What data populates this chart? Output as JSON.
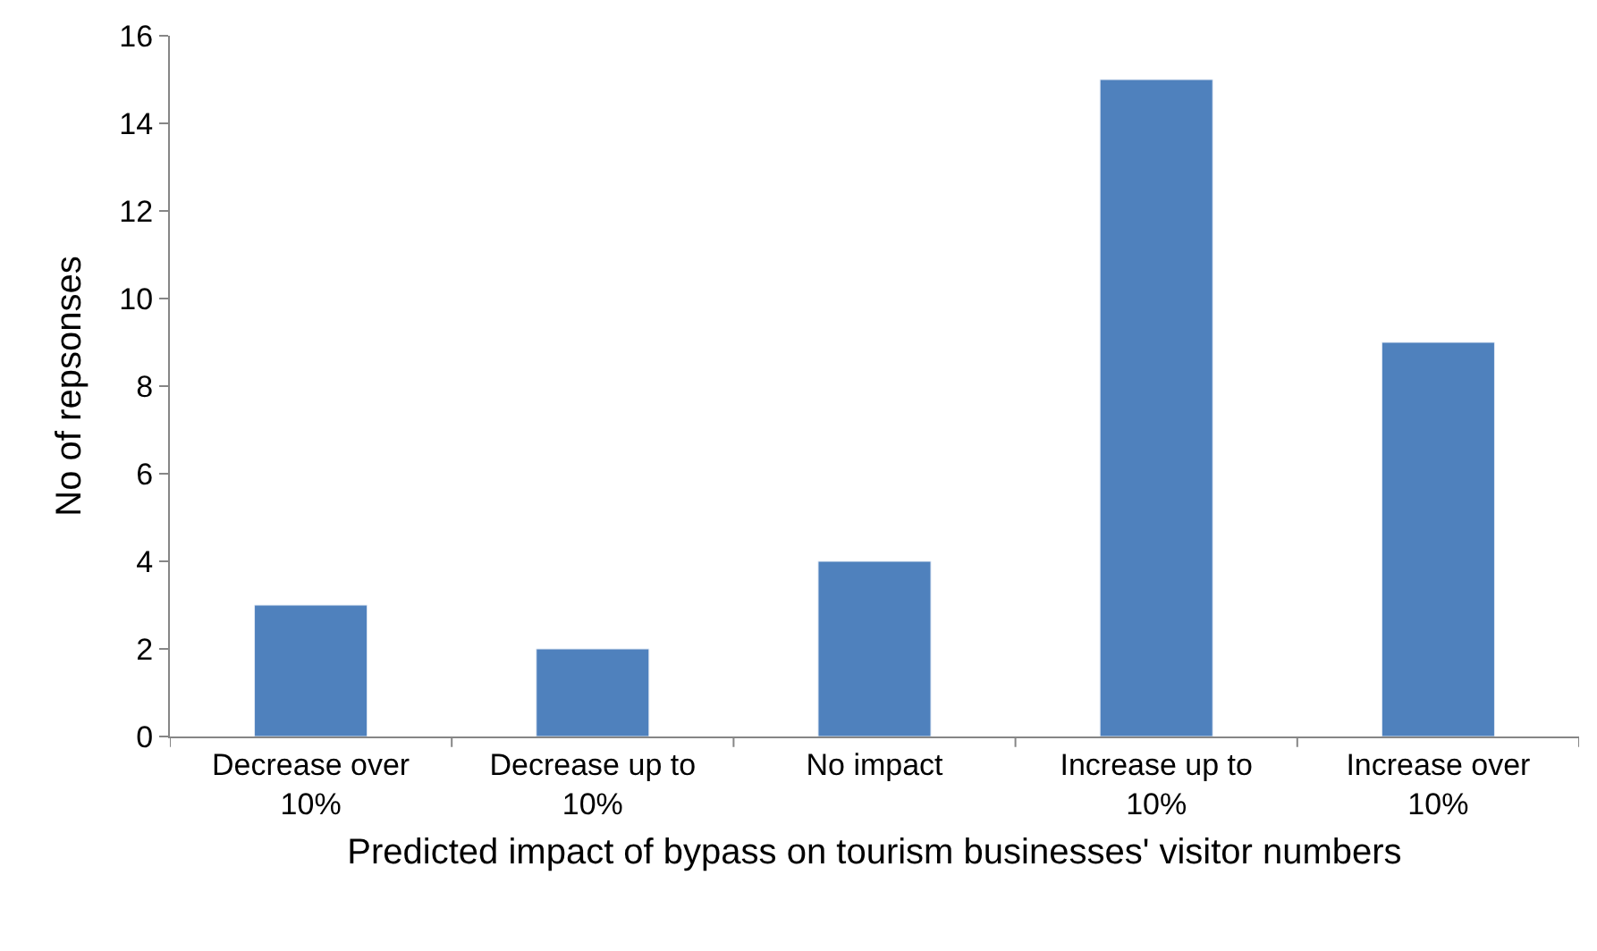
{
  "chart_data": {
    "type": "bar",
    "xlabel": "Predicted impact of bypass on tourism businesses' visitor numbers",
    "ylabel": "No of repsonses",
    "categories": [
      "Decrease over 10%",
      "Decrease up to 10%",
      "No impact",
      "Increase up to 10%",
      "Increase over 10%"
    ],
    "values": [
      3,
      2,
      4,
      15,
      9
    ],
    "color": "#4f81bd",
    "ylim": [
      0,
      16
    ],
    "yticks": [
      0,
      2,
      4,
      6,
      8,
      10,
      12,
      14,
      16
    ],
    "grid": false
  }
}
